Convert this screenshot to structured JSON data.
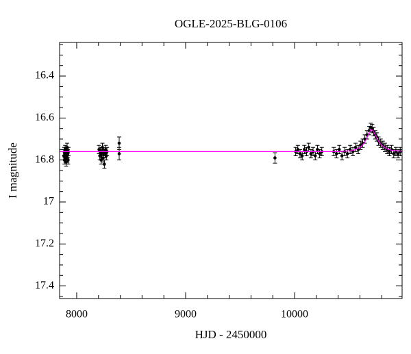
{
  "chart_data": {
    "type": "scatter",
    "title": "OGLE-2025-BLG-0106",
    "xlabel": "HJD - 2450000",
    "ylabel": "I magnitude",
    "xlim": [
      7843,
      10987
    ],
    "ylim": [
      16.24,
      17.46
    ],
    "invert_y": true,
    "xticks": [
      8000,
      9000,
      10000
    ],
    "yticks": [
      16.4,
      16.6,
      16.8,
      17,
      17.2,
      17.4
    ],
    "xminorticks": [
      8200,
      8400,
      8600,
      8800,
      9200,
      9400,
      9600,
      9800,
      10200,
      10400,
      10600,
      10800
    ],
    "yminorticks": [
      16.25,
      16.3,
      16.35,
      16.45,
      16.5,
      16.55,
      16.65,
      16.7,
      16.75,
      16.85,
      16.9,
      16.95,
      17.05,
      17.1,
      17.15,
      17.25,
      17.3,
      17.35,
      17.45
    ],
    "series": [
      {
        "type": "errorbar",
        "color": "#000000",
        "x": [
          7882,
          7885,
          7888,
          7891,
          7894,
          7897,
          7900,
          7903,
          7906,
          7909,
          7912,
          7915,
          7918,
          7921,
          7924,
          8205,
          8212,
          8218,
          8224,
          8230,
          8236,
          8242,
          8248,
          8254,
          8260,
          8266,
          8272,
          8278,
          8390,
          8390,
          9820,
          10010,
          10030,
          10050,
          10070,
          10090,
          10110,
          10130,
          10150,
          10170,
          10190,
          10210,
          10230,
          10250,
          10360,
          10385,
          10410,
          10435,
          10460,
          10485,
          10510,
          10535,
          10560,
          10585,
          10605,
          10625,
          10645,
          10665,
          10685,
          10700,
          10712,
          10725,
          10740,
          10755,
          10770,
          10790,
          10810,
          10830,
          10850,
          10870,
          10890,
          10910,
          10930,
          10950,
          10970
        ],
        "values": [
          16.78,
          16.76,
          16.8,
          16.77,
          16.75,
          16.79,
          16.77,
          16.81,
          16.76,
          16.78,
          16.74,
          16.79,
          16.77,
          16.8,
          16.76,
          16.75,
          16.78,
          16.76,
          16.8,
          16.77,
          16.74,
          16.79,
          16.76,
          16.82,
          16.77,
          16.75,
          16.78,
          16.76,
          16.72,
          16.77,
          16.79,
          16.76,
          16.75,
          16.77,
          16.78,
          16.75,
          16.76,
          16.74,
          16.77,
          16.76,
          16.78,
          16.75,
          16.77,
          16.76,
          16.76,
          16.77,
          16.75,
          16.78,
          16.76,
          16.77,
          16.75,
          16.76,
          16.74,
          16.75,
          16.73,
          16.72,
          16.7,
          16.68,
          16.66,
          16.645,
          16.65,
          16.665,
          16.68,
          16.69,
          16.71,
          16.72,
          16.73,
          16.74,
          16.75,
          16.76,
          16.75,
          16.77,
          16.76,
          16.77,
          16.76
        ],
        "errors": [
          0.02,
          0.02,
          0.02,
          0.02,
          0.02,
          0.02,
          0.02,
          0.02,
          0.02,
          0.02,
          0.02,
          0.02,
          0.02,
          0.02,
          0.02,
          0.02,
          0.02,
          0.02,
          0.02,
          0.02,
          0.02,
          0.02,
          0.02,
          0.02,
          0.02,
          0.02,
          0.02,
          0.02,
          0.03,
          0.03,
          0.025,
          0.02,
          0.02,
          0.02,
          0.02,
          0.02,
          0.02,
          0.02,
          0.02,
          0.02,
          0.02,
          0.02,
          0.02,
          0.02,
          0.02,
          0.02,
          0.02,
          0.02,
          0.02,
          0.02,
          0.02,
          0.02,
          0.02,
          0.02,
          0.02,
          0.02,
          0.02,
          0.02,
          0.02,
          0.02,
          0.02,
          0.02,
          0.02,
          0.02,
          0.02,
          0.02,
          0.02,
          0.02,
          0.02,
          0.02,
          0.02,
          0.02,
          0.02,
          0.02,
          0.02
        ]
      },
      {
        "type": "line",
        "color": "#ff00ff",
        "x": [
          7843,
          10400,
          10500,
          10550,
          10600,
          10630,
          10660,
          10680,
          10700,
          10720,
          10740,
          10770,
          10800,
          10850,
          10900,
          10987
        ],
        "values": [
          16.76,
          16.76,
          16.757,
          16.752,
          16.74,
          16.725,
          16.7,
          16.675,
          16.655,
          16.66,
          16.68,
          16.71,
          16.73,
          16.748,
          16.755,
          16.758
        ]
      }
    ]
  }
}
